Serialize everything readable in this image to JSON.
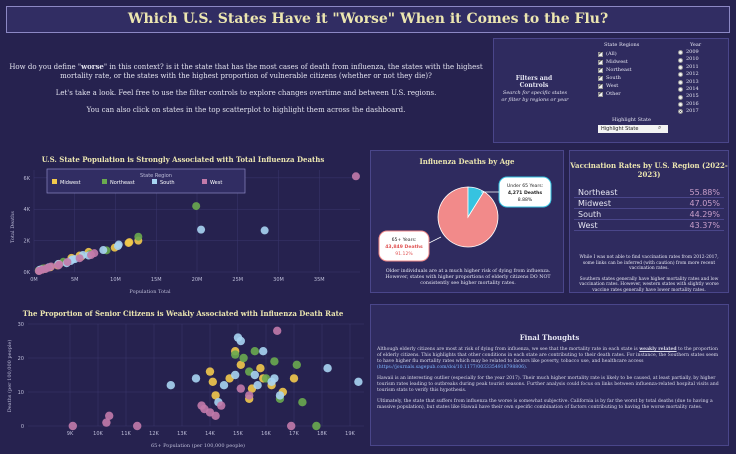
{
  "header": {
    "title": "Which U.S. States Have it \"Worse\" When it Comes to the Flu?"
  },
  "intro": {
    "p1a": "How do you define \"",
    "p1b": "worse",
    "p1c": "\" in this context? is it the state that has the most cases of death from influenza, the states with the highest mortality rate, or the states with the highest proportion of vulnerable citizens (whether or not they die)?",
    "p2": "Let's take a look. Feel free to use the filter controls to explore changes overtime and between U.S. regions.",
    "p3": "You can also click on states in the top scatterplot to highlight them across the dashboard."
  },
  "filters": {
    "label": "Filters and Controls",
    "hint": "Search for specific states or filter by regions or year",
    "regions_title": "State Regions",
    "regions": [
      {
        "label": "(All)",
        "checked": true
      },
      {
        "label": "Midwest",
        "checked": true
      },
      {
        "label": "Northeast",
        "checked": true
      },
      {
        "label": "South",
        "checked": true
      },
      {
        "label": "West",
        "checked": true
      },
      {
        "label": "Other",
        "checked": true
      }
    ],
    "year_title": "Year",
    "years": [
      {
        "label": "2009",
        "selected": false
      },
      {
        "label": "2010",
        "selected": false
      },
      {
        "label": "2011",
        "selected": false
      },
      {
        "label": "2012",
        "selected": false
      },
      {
        "label": "2013",
        "selected": false
      },
      {
        "label": "2014",
        "selected": false
      },
      {
        "label": "2015",
        "selected": false
      },
      {
        "label": "2016",
        "selected": false
      },
      {
        "label": "2017",
        "selected": true
      }
    ],
    "highlight_title": "Highlight State",
    "highlight_value": "Highlight State"
  },
  "colors": {
    "midwest": "#f2c94c",
    "northeast": "#6aaa4f",
    "south": "#a8d4f2",
    "west": "#c27aaa",
    "pie_big": "#f28a8a",
    "pie_small": "#36c3e0"
  },
  "scatter1": {
    "title": "U.S. State Population is Strongly Associated with Total Influenza Deaths",
    "xlabel": "Population Total",
    "ylabel": "Total Deaths",
    "legend_title": "State Region",
    "legend": [
      "Midwest",
      "Northeast",
      "South",
      "West"
    ]
  },
  "scatter2": {
    "title": "The Proportion of Senior Citizens is Weakly Associated with Influenza Death Rate",
    "xlabel": "65+ Population (per 100,000 people)",
    "ylabel": "Deaths (per 100,000 people)"
  },
  "chart_data": [
    {
      "type": "scatter",
      "title": "U.S. State Population is Strongly Associated with Total Influenza Deaths",
      "xlabel": "Population Total",
      "ylabel": "Total Deaths",
      "xlim": [
        0,
        40000000
      ],
      "ylim": [
        0,
        6500
      ],
      "x_ticks": [
        "0M",
        "5M",
        "10M",
        "15M",
        "20M",
        "25M",
        "30M",
        "35M"
      ],
      "y_ticks": [
        "0K",
        "2K",
        "4K",
        "6K"
      ],
      "series": [
        {
          "name": "Midwest",
          "points": [
            [
              0.6,
              80
            ],
            [
              1.0,
              150
            ],
            [
              1.3,
              220
            ],
            [
              2.0,
              300
            ],
            [
              2.9,
              420
            ],
            [
              3.1,
              520
            ],
            [
              4.6,
              900
            ],
            [
              5.6,
              1050
            ],
            [
              5.8,
              980
            ],
            [
              6.7,
              1280
            ],
            [
              9.9,
              1550
            ],
            [
              11.6,
              1850
            ],
            [
              11.7,
              1900
            ],
            [
              12.8,
              2000
            ]
          ]
        },
        {
          "name": "Northeast",
          "points": [
            [
              0.6,
              90
            ],
            [
              0.6,
              110
            ],
            [
              1.0,
              180
            ],
            [
              1.1,
              220
            ],
            [
              1.3,
              200
            ],
            [
              3.6,
              650
            ],
            [
              6.9,
              1150
            ],
            [
              8.9,
              1380
            ],
            [
              12.8,
              2250
            ],
            [
              19.9,
              4200
            ]
          ]
        },
        {
          "name": "South",
          "points": [
            [
              0.7,
              140
            ],
            [
              0.9,
              170
            ],
            [
              1.8,
              300
            ],
            [
              3.0,
              520
            ],
            [
              4.0,
              560
            ],
            [
              4.5,
              700
            ],
            [
              4.7,
              800
            ],
            [
              5.0,
              820
            ],
            [
              6.0,
              1080
            ],
            [
              6.7,
              1050
            ],
            [
              8.5,
              1400
            ],
            [
              10.3,
              1650
            ],
            [
              10.4,
              1750
            ],
            [
              20.5,
              2700
            ],
            [
              28.3,
              2650
            ]
          ]
        },
        {
          "name": "West",
          "points": [
            [
              0.6,
              60
            ],
            [
              0.7,
              90
            ],
            [
              1.0,
              150
            ],
            [
              1.4,
              190
            ],
            [
              1.7,
              270
            ],
            [
              2.1,
              350
            ],
            [
              3.0,
              420
            ],
            [
              3.1,
              480
            ],
            [
              4.1,
              640
            ],
            [
              5.6,
              880
            ],
            [
              7.0,
              1080
            ],
            [
              7.4,
              1200
            ],
            [
              39.5,
              6100
            ]
          ]
        }
      ]
    },
    {
      "type": "pie",
      "title": "Influenza Deaths by Age",
      "slices": [
        {
          "label": "65+ Years",
          "value": 43849,
          "text": "43,849 Deaths",
          "pct": "91.12%"
        },
        {
          "label": "Under 65 Years",
          "value": 4271,
          "text": "4,271 Deaths",
          "pct": "8.88%"
        }
      ],
      "caption": "Older individuals are at a much higher risk of dying from influenza. However, states with higher proportions of elderly citizens DO NOT consistently see higher mortality rates."
    },
    {
      "type": "table",
      "title": "Vaccination Rates by U.S. Region (2022-2023)",
      "rows": [
        {
          "region": "Northeast",
          "rate": "55.88%"
        },
        {
          "region": "Midwest",
          "rate": "47.05%"
        },
        {
          "region": "South",
          "rate": "44.29%"
        },
        {
          "region": "West",
          "rate": "43.37%"
        }
      ],
      "note1": "While I was not able to find vaccination rates from 2012-2017, some links can be inferred (with caution) from more recent vaccination rates.",
      "note2": "Southern states generally have higher mortality rates and low vaccination rates. However, western states with slightly worse vaccine rates generally have lower mortality rates."
    },
    {
      "type": "scatter",
      "title": "The Proportion of Senior Citizens is Weakly Associated with Influenza Death Rate",
      "xlabel": "65+ Population (per 100,000 people)",
      "ylabel": "Deaths (per 100,000 people)",
      "xlim": [
        7.5,
        19.5
      ],
      "ylim": [
        0,
        30
      ],
      "x_ticks": [
        "9K",
        "10K",
        "11K",
        "12K",
        "13K",
        "14K",
        "15K",
        "16K",
        "17K",
        "18K",
        "19K"
      ],
      "y_ticks": [
        "0",
        "10",
        "20",
        "30"
      ],
      "series": [
        {
          "name": "Midwest",
          "points": [
            [
              14.0,
              16
            ],
            [
              14.1,
              13
            ],
            [
              14.2,
              9
            ],
            [
              14.7,
              14
            ],
            [
              14.9,
              22
            ],
            [
              15.1,
              18
            ],
            [
              15.4,
              8
            ],
            [
              15.5,
              11
            ],
            [
              15.8,
              17
            ],
            [
              15.9,
              14
            ],
            [
              16.2,
              12
            ],
            [
              16.6,
              10
            ],
            [
              17.0,
              14
            ]
          ]
        },
        {
          "name": "Northeast",
          "points": [
            [
              14.9,
              21
            ],
            [
              15.2,
              20
            ],
            [
              15.4,
              16
            ],
            [
              15.6,
              22
            ],
            [
              16.0,
              14
            ],
            [
              16.3,
              19
            ],
            [
              16.5,
              8
            ],
            [
              17.1,
              18
            ],
            [
              17.3,
              7
            ],
            [
              17.8,
              0
            ]
          ]
        },
        {
          "name": "South",
          "points": [
            [
              12.6,
              12
            ],
            [
              13.5,
              14
            ],
            [
              14.3,
              7
            ],
            [
              14.5,
              12
            ],
            [
              14.9,
              15
            ],
            [
              15.0,
              26
            ],
            [
              15.1,
              25
            ],
            [
              15.6,
              15
            ],
            [
              15.7,
              12
            ],
            [
              15.9,
              22
            ],
            [
              16.2,
              13
            ],
            [
              16.3,
              14
            ],
            [
              16.5,
              9
            ],
            [
              18.2,
              17
            ],
            [
              19.3,
              13
            ]
          ]
        },
        {
          "name": "West",
          "points": [
            [
              9.1,
              0
            ],
            [
              10.3,
              1
            ],
            [
              10.4,
              3
            ],
            [
              11.4,
              0
            ],
            [
              13.7,
              6
            ],
            [
              13.8,
              5
            ],
            [
              14.0,
              4
            ],
            [
              14.2,
              3
            ],
            [
              14.4,
              6
            ],
            [
              15.1,
              11
            ],
            [
              15.4,
              9
            ],
            [
              16.4,
              28
            ],
            [
              16.9,
              0
            ]
          ]
        }
      ]
    }
  ],
  "pie": {
    "title": "Influenza Deaths by Age",
    "big_label": "65+ Years:",
    "big_text": "43,849 Deaths",
    "big_pct": "91.12%",
    "small_label": "Under 65 Years:",
    "small_text": "4,271 Deaths",
    "small_pct": "8.88%",
    "caption": "Older individuals are at a much higher risk of dying from influenza. However, states with higher proportions of elderly citizens DO NOT consistently see higher mortality rates."
  },
  "vaccination": {
    "title": "Vaccination Rates by U.S. Region (2022-2023)",
    "rows": [
      {
        "region": "Northeast",
        "rate": "55.88%"
      },
      {
        "region": "Midwest",
        "rate": "47.05%"
      },
      {
        "region": "South",
        "rate": "44.29%"
      },
      {
        "region": "West",
        "rate": "43.37%"
      }
    ],
    "note1": "While I was not able to find vaccination rates from 2012-2017, some links can be inferred (with caution) from more recent vaccination rates.",
    "note2": "Southern states generally have higher mortality rates and low vaccination rates. However, western states with slightly worse vaccine rates generally have lower mortality rates."
  },
  "final": {
    "title": "Final Thoughts",
    "p1a": "Although elderly citizens are most at risk of dying from influenza, we see that the mortality rate in each state is ",
    "p1b": "weakly related",
    "p1c": " to the proportion of elderly citizens. This highlights that other conditions in each state are contributing to their death rates. For instance, the Southern states seem to have higher flu mortality rates which may be related to factors like poverty, tobacco use, and healthcare access",
    "p1link": "(https://journals.sagepub.com/doi/10.1177/0033354918798806).",
    "p2": "Hawaii is an interesting outlier (especially for the year 2017). Their much higher mortality rate is likely to be caused, at least partially, by higher tourism rates leading to outbreaks during peak tourist seasons. Further analysis could focus on links between influenza-related hospital visits and tourism stats to verify this hypothesis.",
    "p3": "Ultimately, the state that suffers from influenza the worse is somewhat subjective. California is by far the worst by total deaths (due to having a massive population), but states like Hawaii have their own specific combination of factors contributing to having the worse mortality rates."
  }
}
